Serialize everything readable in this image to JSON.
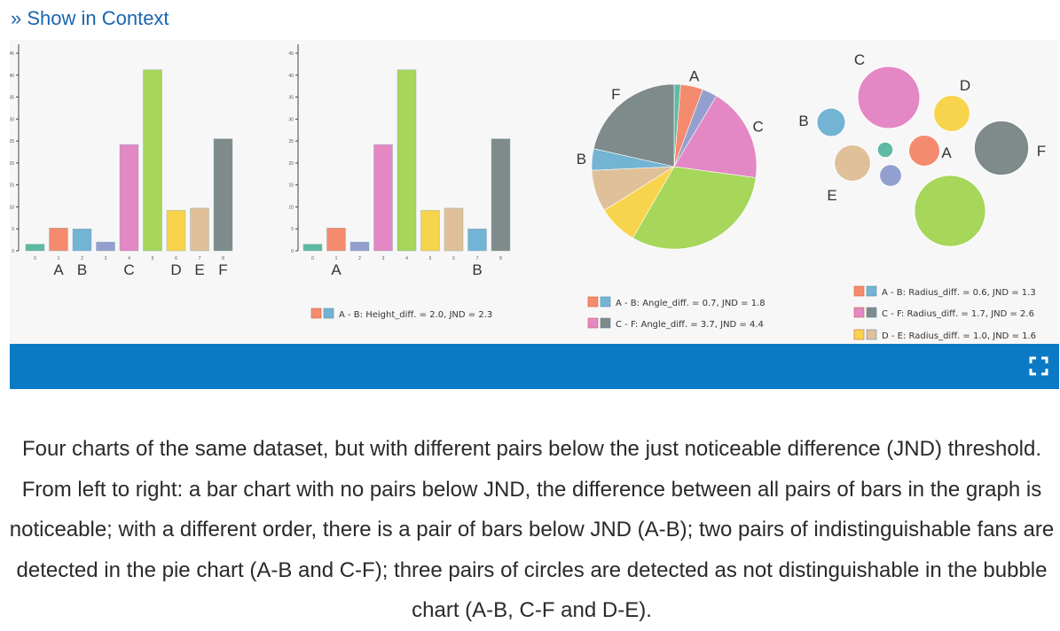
{
  "context_link": {
    "label": "» Show in Context"
  },
  "figure": {
    "colors": {
      "teal": "#5fb9a3",
      "orange": "#f58b6e",
      "blue": "#73b4d4",
      "lavender": "#93a0cf",
      "pink": "#e388c4",
      "green": "#a6d65a",
      "yellow": "#f8d44d",
      "tan": "#e0c098",
      "gray": "#7f8a8a",
      "toolbar": "#0a7ac5",
      "link": "#1a65b0"
    },
    "icons": {
      "expand": "fullscreen-expand-icon"
    },
    "bar_axis_ticks": [
      "0",
      "5",
      "10",
      "15",
      "20",
      "25",
      "30",
      "35",
      "40",
      "45"
    ],
    "legend_bar2": [
      "A - B: Height_diff. = 2.0, JND = 2.3"
    ],
    "legend_pie": [
      "A - B: Angle_diff. = 0.7, JND = 1.8",
      "C - F: Angle_diff. = 3.7, JND = 4.4"
    ],
    "legend_bubble": [
      "A - B: Radius_diff. = 0.6, JND = 1.3",
      "C - F: Radius_diff. = 1.7, JND = 2.6",
      "D - E: Radius_diff. = 1.0, JND = 1.6"
    ]
  },
  "chart_data": [
    {
      "type": "bar",
      "categories": [
        "0",
        "1",
        "2",
        "3",
        "4",
        "5",
        "6",
        "7",
        "8"
      ],
      "bar_labels": [
        "",
        "A",
        "B",
        "",
        "C",
        "",
        "D",
        "E",
        "F"
      ],
      "values": [
        1.5,
        5.2,
        5.0,
        2.0,
        24.2,
        41.2,
        9.2,
        9.7,
        25.5
      ],
      "colors": [
        "teal",
        "orange",
        "blue",
        "lavender",
        "pink",
        "green",
        "yellow",
        "tan",
        "gray"
      ],
      "ylim": [
        0,
        45
      ]
    },
    {
      "type": "bar",
      "categories": [
        "0",
        "1",
        "2",
        "3",
        "4",
        "5",
        "6",
        "7",
        "8"
      ],
      "bar_labels": [
        "",
        "A",
        "",
        "",
        "",
        "",
        "",
        "B",
        ""
      ],
      "values": [
        1.5,
        5.2,
        2.0,
        24.2,
        41.2,
        9.2,
        9.7,
        5.0,
        25.5
      ],
      "colors": [
        "teal",
        "orange",
        "lavender",
        "pink",
        "green",
        "yellow",
        "tan",
        "blue",
        "gray"
      ],
      "ylim": [
        0,
        45
      ]
    },
    {
      "type": "pie",
      "slices": [
        {
          "label": "",
          "color": "teal",
          "value": 1.5
        },
        {
          "label": "A",
          "color": "orange",
          "value": 5.2
        },
        {
          "label": "",
          "color": "lavender",
          "value": 3.5
        },
        {
          "label": "C",
          "color": "pink",
          "value": 22
        },
        {
          "label": "",
          "color": "green",
          "value": 37
        },
        {
          "label": "",
          "color": "yellow",
          "value": 9.2
        },
        {
          "label": "",
          "color": "tan",
          "value": 9.7
        },
        {
          "label": "B",
          "color": "blue",
          "value": 5.0
        },
        {
          "label": "F",
          "color": "gray",
          "value": 25.5
        }
      ]
    },
    {
      "type": "bubble",
      "bubbles": [
        {
          "label": "C",
          "color": "pink",
          "value": 48
        },
        {
          "label": "D",
          "color": "yellow",
          "value": 28
        },
        {
          "label": "B",
          "color": "blue",
          "value": 22
        },
        {
          "label": "",
          "color": "teal",
          "value": 12
        },
        {
          "label": "A",
          "color": "orange",
          "value": 24
        },
        {
          "label": "F",
          "color": "gray",
          "value": 42
        },
        {
          "label": "E",
          "color": "tan",
          "value": 28
        },
        {
          "label": "",
          "color": "lavender",
          "value": 17
        },
        {
          "label": "",
          "color": "green",
          "value": 55
        }
      ]
    }
  ],
  "caption": {
    "text": "Four charts of the same dataset, but with different pairs below the just noticeable difference (JND) threshold. From left to right: a bar chart with no pairs below JND, the difference between all pairs of bars in the graph is noticeable; with a different order, there is a pair of bars below JND (A-B); two pairs of indistinguishable fans are detected in the pie chart (A-B and C-F); three pairs of circles are detected as not distinguishable in the bubble chart (A-B, C-F and D-E)."
  }
}
